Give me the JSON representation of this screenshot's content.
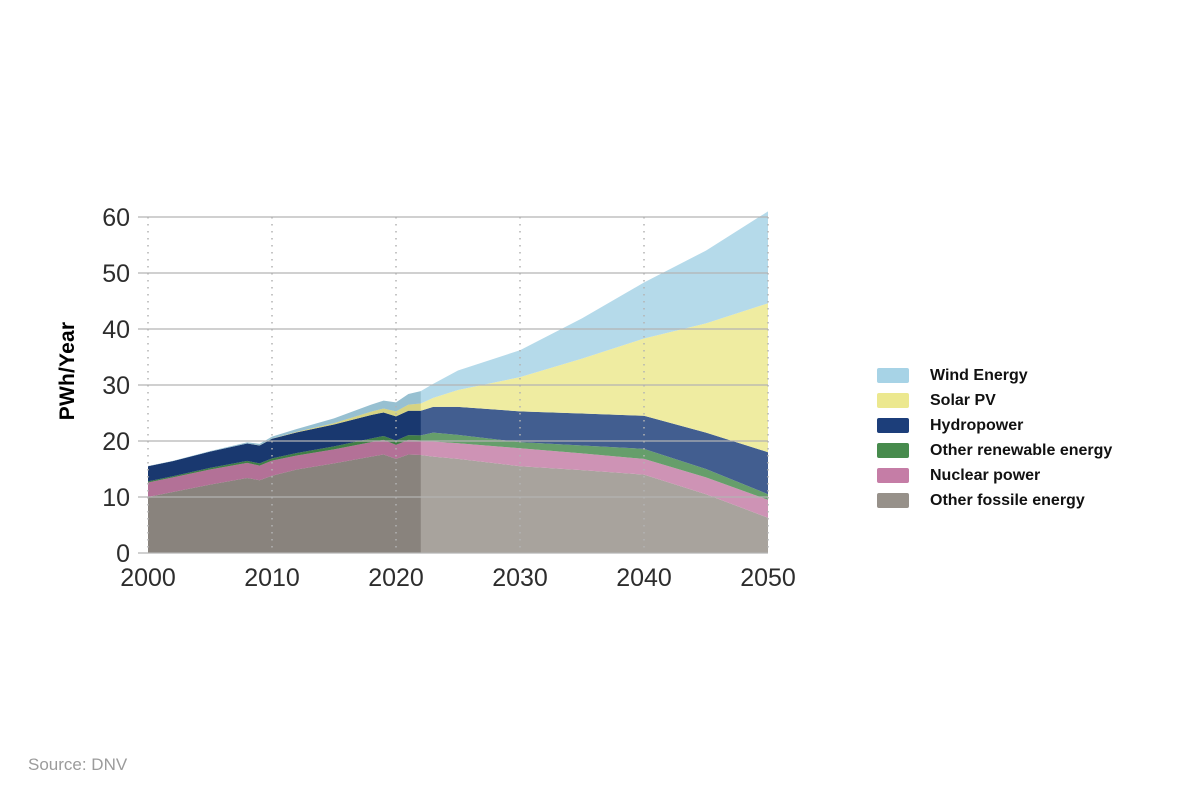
{
  "page": {
    "background": "#ffffff"
  },
  "source": {
    "label": "Source: DNV"
  },
  "chart_data": {
    "type": "area",
    "stacked": true,
    "title": "",
    "xlabel": "",
    "ylabel": "PWh/Year",
    "xlim": [
      2000,
      2050
    ],
    "ylim": [
      0,
      60
    ],
    "yticks": [
      0,
      10,
      20,
      30,
      40,
      50,
      60
    ],
    "xticks": [
      2000,
      2010,
      2020,
      2030,
      2040,
      2050
    ],
    "grid": {
      "horizontal": "solid",
      "vertical": "dotted"
    },
    "legend_position": "right",
    "historical_until": 2022,
    "x": [
      2000,
      2002,
      2005,
      2008,
      2009,
      2010,
      2012,
      2015,
      2018,
      2019,
      2020,
      2021,
      2022,
      2023,
      2025,
      2030,
      2035,
      2040,
      2045,
      2050
    ],
    "series": [
      {
        "name": "Other fossile energy",
        "color": "#97918a",
        "values": [
          10.0,
          10.9,
          12.2,
          13.4,
          13.0,
          13.8,
          14.9,
          16.0,
          17.2,
          17.6,
          16.8,
          17.6,
          17.5,
          17.2,
          16.8,
          15.5,
          14.8,
          14.0,
          10.5,
          6.3
        ]
      },
      {
        "name": "Nuclear power",
        "color": "#c57da6",
        "values": [
          2.6,
          2.6,
          2.7,
          2.7,
          2.6,
          2.7,
          2.5,
          2.5,
          2.6,
          2.6,
          2.5,
          2.6,
          2.6,
          2.7,
          2.8,
          3.2,
          3.0,
          2.8,
          3.0,
          3.2
        ]
      },
      {
        "name": "Other renewable energy",
        "color": "#478b4d",
        "values": [
          0.2,
          0.2,
          0.3,
          0.35,
          0.4,
          0.4,
          0.45,
          0.55,
          0.65,
          0.7,
          0.8,
          0.85,
          0.9,
          1.6,
          1.5,
          1.1,
          1.4,
          1.8,
          1.5,
          1.0
        ]
      },
      {
        "name": "Hydropower",
        "color": "#1c3e7a",
        "values": [
          2.7,
          2.7,
          2.9,
          3.1,
          3.2,
          3.5,
          3.7,
          3.9,
          4.2,
          4.2,
          4.3,
          4.35,
          4.4,
          4.6,
          5.0,
          5.5,
          5.7,
          5.9,
          6.5,
          7.5
        ]
      },
      {
        "name": "Solar PV",
        "color": "#ece88f",
        "values": [
          0.0,
          0.0,
          0.0,
          0.01,
          0.02,
          0.03,
          0.1,
          0.25,
          0.6,
          0.7,
          0.9,
          1.1,
          1.3,
          1.6,
          3.0,
          6.1,
          9.8,
          13.8,
          19.5,
          26.6
        ]
      },
      {
        "name": "Wind Energy",
        "color": "#a7d3e6",
        "values": [
          0.03,
          0.05,
          0.1,
          0.2,
          0.27,
          0.35,
          0.5,
          0.85,
          1.25,
          1.4,
          1.6,
          1.9,
          2.2,
          2.5,
          3.5,
          4.8,
          7.2,
          10.0,
          13.0,
          16.4
        ]
      }
    ],
    "legend_order_top_to_bottom": [
      "Wind Energy",
      "Solar PV",
      "Hydropower",
      "Other renewable energy",
      "Nuclear power",
      "Other fossile energy"
    ]
  },
  "colors": {
    "grid_line": "#b3b3b3",
    "tick_label": "#2d2d2d",
    "axis_title": "#000000",
    "legend_label": "#111111",
    "source_label": "#9b9b9b",
    "historical_overlay": "rgba(0,0,0,0.09)",
    "forecast_overlay": "rgba(255,255,255,0.17)"
  }
}
